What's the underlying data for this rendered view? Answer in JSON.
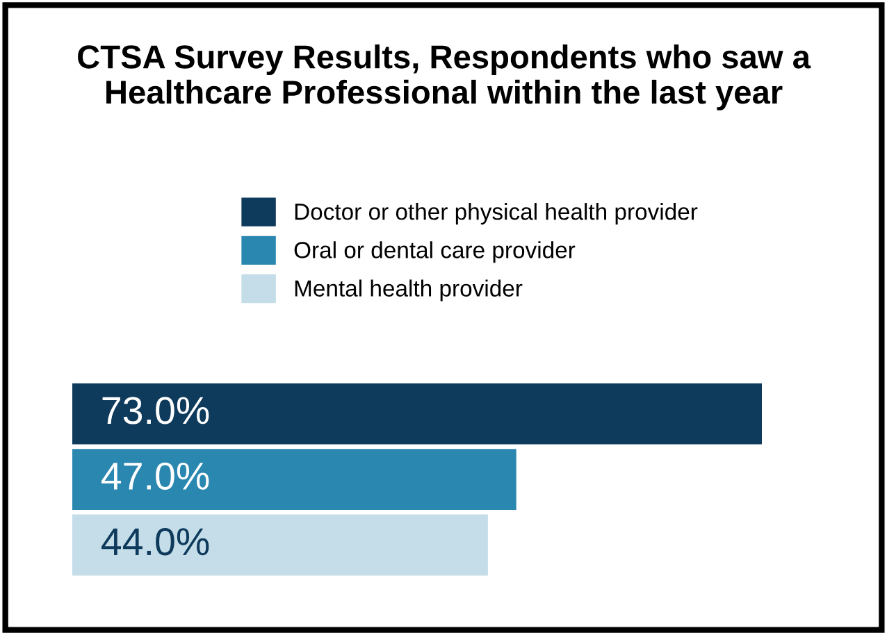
{
  "chart_data": {
    "type": "bar",
    "orientation": "horizontal",
    "title": "CTSA Survey Results, Respondents who saw a\nHealthcare Professional within the last year",
    "categories": [
      null
    ],
    "series": [
      {
        "name": "Doctor or other physical health provider",
        "color": "#0e3a5c",
        "values": [
          73.0
        ],
        "value_labels": [
          "73.0%"
        ]
      },
      {
        "name": "Oral or dental care provider",
        "color": "#2a87b0",
        "values": [
          47.0
        ],
        "value_labels": [
          "47.0%"
        ]
      },
      {
        "name": "Mental health provider",
        "color": "#c5dde8",
        "values": [
          44.0
        ],
        "value_labels": [
          "44.0%"
        ]
      }
    ],
    "tick_labels": false,
    "legend": "top",
    "grid": false
  }
}
